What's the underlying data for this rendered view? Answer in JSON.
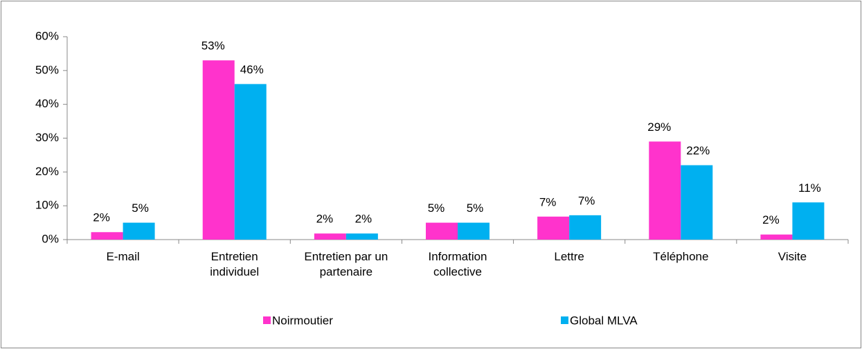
{
  "chart_data": {
    "type": "bar",
    "categories": [
      "E-mail",
      "Entretien individuel",
      "Entretien par un partenaire",
      "Information collective",
      "Lettre",
      "Téléphone",
      "Visite"
    ],
    "series": [
      {
        "name": "Noirmoutier",
        "color": "#ff33cc",
        "values": [
          2.2,
          53,
          1.8,
          5,
          6.8,
          29,
          1.5
        ],
        "value_labels": [
          "2%",
          "53%",
          "2%",
          "5%",
          "7%",
          "29%",
          "2%"
        ]
      },
      {
        "name": "Global MLVA",
        "color": "#00b0f0",
        "values": [
          5,
          46,
          1.8,
          5,
          7.2,
          22,
          11
        ],
        "value_labels": [
          "5%",
          "46%",
          "2%",
          "5%",
          "7%",
          "22%",
          "11%"
        ]
      }
    ],
    "ylim": [
      0,
      60
    ],
    "yticks": [
      {
        "value": 0,
        "label": "0%"
      },
      {
        "value": 10,
        "label": "10%"
      },
      {
        "value": 20,
        "label": "20%"
      },
      {
        "value": 30,
        "label": "30%"
      },
      {
        "value": 40,
        "label": "40%"
      },
      {
        "value": 50,
        "label": "50%"
      },
      {
        "value": 60,
        "label": "60%"
      }
    ],
    "grid": false,
    "legend": "bottom"
  }
}
